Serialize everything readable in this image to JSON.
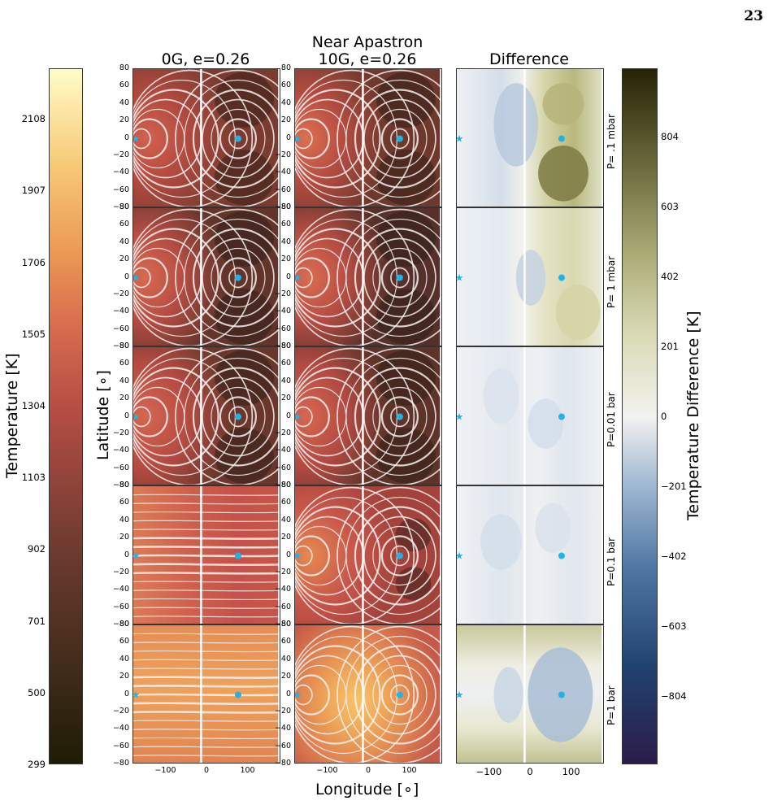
{
  "page_number": "23",
  "figure": {
    "supertitle": "Near Apastron",
    "columns": [
      "0G, e=0.26",
      "10G, e=0.26",
      "Difference"
    ],
    "rows": [
      "P= .1 mbar",
      "P= 1 mbar",
      "P=0.01 bar",
      "P=0.1 bar",
      "P=1 bar"
    ],
    "xlabel": "Longitude [∘]",
    "ylabel": "Latitude [∘]",
    "lat_ticks": [
      "80",
      "60",
      "40",
      "20",
      "0",
      "−20",
      "−40",
      "−60",
      "−80"
    ],
    "lon_ticks": [
      "−100",
      "0",
      "100"
    ],
    "left_colorbar": {
      "label": "Temperature [K]",
      "ticks": [
        "2108",
        "1907",
        "1706",
        "1505",
        "1304",
        "1103",
        "902",
        "701",
        "500",
        "299"
      ]
    },
    "right_colorbar": {
      "label": "Temperature Difference [K]",
      "ticks": [
        "804",
        "603",
        "402",
        "201",
        "0",
        "−201",
        "−402",
        "−603",
        "−804"
      ]
    }
  },
  "chart_data": {
    "type": "heatmap",
    "supertitle": "Near Apastron",
    "panels_columns": [
      "0G, e=0.26",
      "10G, e=0.26",
      "Difference"
    ],
    "panels_rows": [
      "P= .1 mbar",
      "P= 1 mbar",
      "P=0.01 bar",
      "P=0.1 bar",
      "P=1 bar"
    ],
    "xlabel": "Longitude [∘]",
    "ylabel": "Latitude [∘]",
    "xlim": [
      -180,
      180
    ],
    "ylim": [
      -80,
      80
    ],
    "markers": {
      "star": {
        "lon": -180,
        "lat": 0
      },
      "dot": {
        "lon": 75,
        "lat": 0
      }
    },
    "temperature_colorbar": {
      "min": 299,
      "max": 2250,
      "ticks": [
        2108,
        1907,
        1706,
        1505,
        1304,
        1103,
        902,
        701,
        500,
        299
      ]
    },
    "difference_colorbar": {
      "min": -1000,
      "max": 1000,
      "ticks": [
        804,
        603,
        402,
        201,
        0,
        -201,
        -402,
        -603,
        -804
      ]
    },
    "colors": {
      "temp_low": "#1f1c05",
      "temp_mid": "#c8504a",
      "temp_high": "#fffcc8",
      "diff_low": "#2b1c4a",
      "diff_zero": "#f2f2f0",
      "diff_high": "#262305",
      "marker": "#1fb4e8"
    }
  }
}
